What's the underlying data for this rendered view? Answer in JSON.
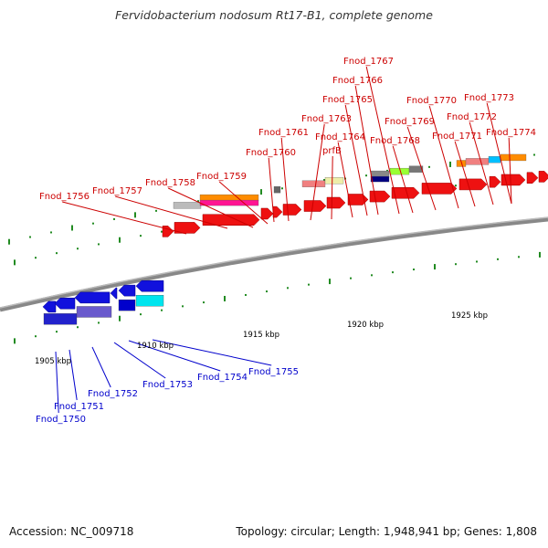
{
  "title": "Fervidobacterium nodosum Rt17-B1, complete genome",
  "footer": {
    "accession": "Accession: NC_009718",
    "topology": "Topology: circular; Length: 1,948,941 bp; Genes: 1,808"
  },
  "scale_labels": [
    "1905 kbp",
    "1910 kbp",
    "1915 kbp",
    "1920 kbp",
    "1925 kbp"
  ],
  "colors": {
    "label_top": "#cc0000",
    "label_bottom": "#0000cc",
    "backbone": "#888888",
    "tick": "#228b22",
    "red_gene": "#ee1111",
    "blue_gene": "#1111dd"
  },
  "top_labels": [
    "Fnod_1756",
    "Fnod_1757",
    "Fnod_1758",
    "Fnod_1759",
    "Fnod_1760",
    "Fnod_1761",
    "Fnod_1763",
    "prfB",
    "Fnod_1764",
    "Fnod_1765",
    "Fnod_1766",
    "Fnod_1767",
    "Fnod_1768",
    "Fnod_1769",
    "Fnod_1770",
    "Fnod_1771",
    "Fnod_1772",
    "Fnod_1773",
    "Fnod_1774"
  ],
  "bottom_labels": [
    "Fnod_1750",
    "Fnod_1751",
    "Fnod_1752",
    "Fnod_1753",
    "Fnod_1754",
    "Fnod_1755"
  ]
}
